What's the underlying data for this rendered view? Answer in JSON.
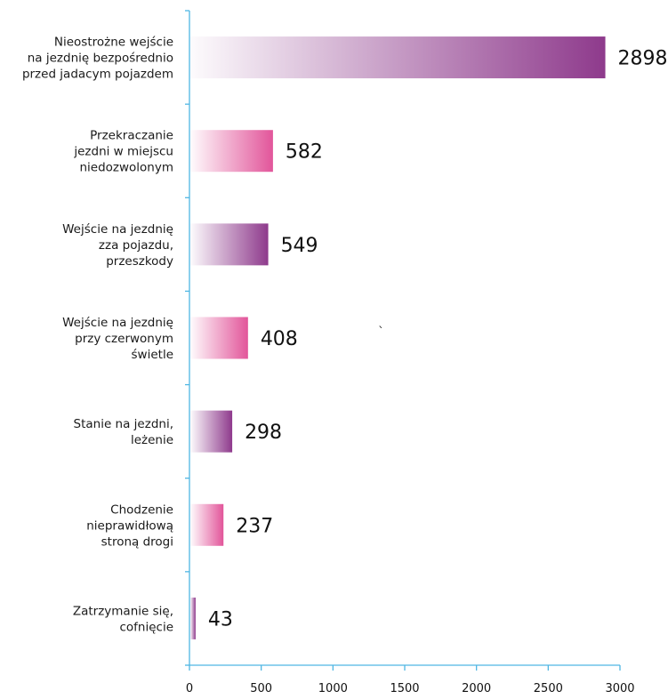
{
  "chart_data": {
    "type": "bar",
    "orientation": "horizontal",
    "title": "",
    "xlabel": "",
    "ylabel": "",
    "xlim": [
      0,
      3000
    ],
    "x_ticks": [
      "0",
      "500",
      "1000",
      "1500",
      "2000",
      "2500",
      "3000"
    ],
    "grid": false,
    "legend": "none",
    "categories": [
      [
        "Nieostrożne wejście",
        "na jezdnię bezpośrednio",
        "przed jadacym pojazdem"
      ],
      [
        "Przekraczanie",
        "jezdni w miejscu",
        "niedozwolonym"
      ],
      [
        "Wejście na jezdnię",
        "zza pojazdu,",
        "przeszkody"
      ],
      [
        "Wejście na jezdnię",
        "przy czerwonym",
        "świetle"
      ],
      [
        "Stanie na jezdni,",
        "leżenie"
      ],
      [
        "Chodzenie",
        "nieprawidłową",
        "stroną drogi"
      ],
      [
        "Zatrzymanie się,",
        "cofnięcie"
      ]
    ],
    "values": [
      2898,
      582,
      549,
      408,
      298,
      237,
      43
    ],
    "value_labels": [
      "2898",
      "582",
      "549",
      "408",
      "298",
      "237",
      "43"
    ],
    "bar_colors": [
      "#8e3a8c",
      "#e2559a",
      "#8e3a8c",
      "#e2559a",
      "#8e3a8c",
      "#e2559a",
      "#8e3a8c"
    ],
    "axis_color": "#4fb6e3",
    "stray_mark": "`"
  }
}
